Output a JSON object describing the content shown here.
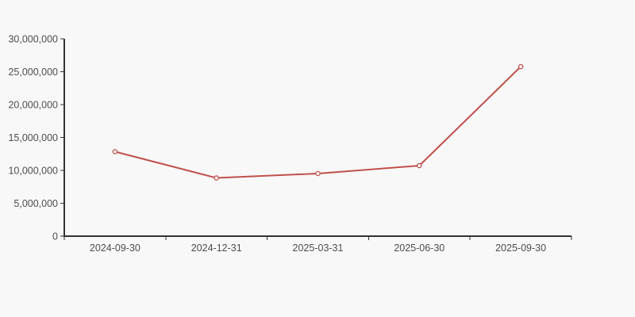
{
  "page": {
    "background": "#f8f8f8"
  },
  "chart_data": {
    "type": "line",
    "title": "",
    "xlabel": "",
    "ylabel": "",
    "categories": [
      "2024-09-30",
      "2024-12-31",
      "2025-03-31",
      "2025-06-30",
      "2025-09-30"
    ],
    "values": [
      12850000,
      8850000,
      9520000,
      10720000,
      25780000
    ],
    "ylim": [
      0,
      30000000
    ],
    "y_ticks": [
      0,
      5000000,
      10000000,
      15000000,
      20000000,
      25000000,
      30000000
    ],
    "y_tick_labels": [
      "0",
      "5,000,000",
      "10,000,000",
      "15,000,000",
      "20,000,000",
      "25,000,000",
      "30,000,000"
    ],
    "grid": false,
    "legend": "none",
    "marker": "hollow-circle",
    "colors": {
      "line": "#c0504c",
      "marker_fill": "#ffffff",
      "axis": "#333333",
      "tick_label": "#4d4d4d",
      "background": "#f8f8f8"
    }
  }
}
